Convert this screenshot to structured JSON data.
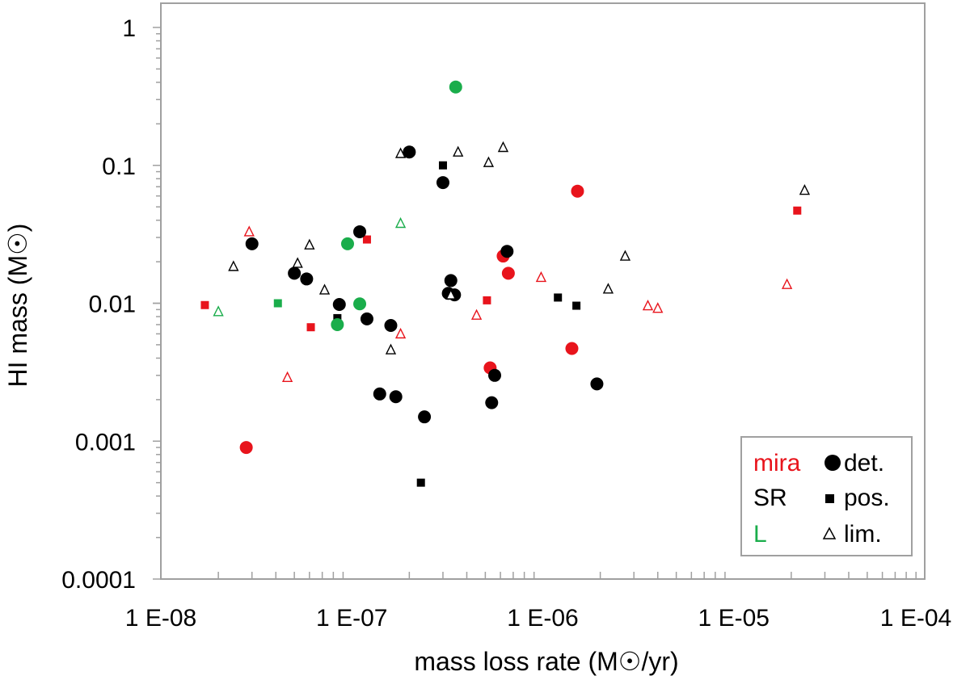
{
  "chart_data": {
    "type": "scatter",
    "title": "",
    "xlabel": "mass loss rate  (M☉/yr)",
    "ylabel": "HI mass (M☉)",
    "xscale": "log",
    "yscale": "log",
    "xlim": [
      1e-08,
      0.0001
    ],
    "ylim": [
      0.0001,
      1
    ],
    "grid": false,
    "x_ticks": [
      {
        "value": 1e-08,
        "label": "1 E-08"
      },
      {
        "value": 1e-07,
        "label": "1 E-07"
      },
      {
        "value": 1e-06,
        "label": "1 E-06"
      },
      {
        "value": 1e-05,
        "label": "1 E-05"
      },
      {
        "value": 0.0001,
        "label": "1 E-04"
      }
    ],
    "y_ticks": [
      {
        "value": 1,
        "label": "1"
      },
      {
        "value": 0.1,
        "label": "0.1"
      },
      {
        "value": 0.01,
        "label": "0.01"
      },
      {
        "value": 0.001,
        "label": "0.001"
      },
      {
        "value": 0.0001,
        "label": "0.0001"
      }
    ],
    "colors": {
      "mira": "#e8141c",
      "SR": "#000000",
      "L": "#1aad4b"
    },
    "legend": {
      "placement": "bottom-right",
      "types": [
        {
          "name": "mira",
          "color": "#e8141c"
        },
        {
          "name": "SR",
          "color": "#000000"
        },
        {
          "name": "L",
          "color": "#1aad4b"
        }
      ],
      "markers": [
        {
          "marker": "circle",
          "label": "det."
        },
        {
          "marker": "square",
          "label": "pos."
        },
        {
          "marker": "triangle",
          "label": "lim."
        }
      ]
    },
    "series": [
      {
        "name": "mira det.",
        "type": "mira",
        "marker": "circle",
        "points": [
          [
            2.8e-08,
            0.0009
          ],
          [
            6.2e-07,
            0.022
          ],
          [
            6.6e-07,
            0.0165
          ],
          [
            5.3e-07,
            0.0034
          ],
          [
            1.42e-06,
            0.0047
          ],
          [
            1.52e-06,
            0.065
          ]
        ]
      },
      {
        "name": "mira pos.",
        "type": "mira",
        "marker": "square",
        "points": [
          [
            1.7e-08,
            0.0097
          ],
          [
            6.1e-08,
            0.0067
          ],
          [
            1.2e-07,
            0.029
          ],
          [
            5.1e-07,
            0.0105
          ],
          [
            2.15e-05,
            0.047
          ]
        ]
      },
      {
        "name": "mira lim.",
        "type": "mira",
        "marker": "triangle",
        "points": [
          [
            2.9e-08,
            0.033
          ],
          [
            4.6e-08,
            0.0029
          ],
          [
            1.8e-07,
            0.006
          ],
          [
            4.5e-07,
            0.0082
          ],
          [
            9.8e-07,
            0.0154
          ],
          [
            3.55e-06,
            0.0096
          ],
          [
            4e-06,
            0.0092
          ],
          [
            1.9e-05,
            0.0137
          ]
        ]
      },
      {
        "name": "SR det.",
        "type": "SR",
        "marker": "circle",
        "points": [
          [
            3e-08,
            0.027
          ],
          [
            5e-08,
            0.0165
          ],
          [
            5.8e-08,
            0.015
          ],
          [
            8.6e-08,
            0.0098
          ],
          [
            1.1e-07,
            0.033
          ],
          [
            1.2e-07,
            0.0077
          ],
          [
            1.4e-07,
            0.0022
          ],
          [
            1.6e-07,
            0.0069
          ],
          [
            1.7e-07,
            0.0021
          ],
          [
            2e-07,
            0.125
          ],
          [
            2.4e-07,
            0.0015
          ],
          [
            3e-07,
            0.075
          ],
          [
            3.2e-07,
            0.0118
          ],
          [
            3.3e-07,
            0.0146
          ],
          [
            3.45e-07,
            0.0115
          ],
          [
            5.4e-07,
            0.0019
          ],
          [
            5.6e-07,
            0.003
          ],
          [
            6.5e-07,
            0.0238
          ],
          [
            1.92e-06,
            0.0026
          ]
        ]
      },
      {
        "name": "SR pos.",
        "type": "SR",
        "marker": "square",
        "points": [
          [
            8.4e-08,
            0.0078
          ],
          [
            2.3e-07,
            0.0005
          ],
          [
            3e-07,
            0.1
          ],
          [
            1.2e-06,
            0.011
          ],
          [
            1.5e-06,
            0.0096
          ]
        ]
      },
      {
        "name": "SR lim.",
        "type": "SR",
        "marker": "triangle",
        "points": [
          [
            2.4e-08,
            0.0185
          ],
          [
            5.2e-08,
            0.0195
          ],
          [
            6e-08,
            0.0265
          ],
          [
            7.2e-08,
            0.0125
          ],
          [
            1.6e-07,
            0.0046
          ],
          [
            1.8e-07,
            0.122
          ],
          [
            3.3e-07,
            0.0115
          ],
          [
            3.6e-07,
            0.125
          ],
          [
            5.2e-07,
            0.105
          ],
          [
            6.2e-07,
            0.135
          ],
          [
            2.2e-06,
            0.0127
          ],
          [
            2.7e-06,
            0.022
          ],
          [
            2.35e-05,
            0.066
          ]
        ]
      },
      {
        "name": "L det.",
        "type": "L",
        "marker": "circle",
        "points": [
          [
            8.4e-08,
            0.007
          ],
          [
            9.5e-08,
            0.027
          ],
          [
            1.1e-07,
            0.0099
          ],
          [
            3.5e-07,
            0.37
          ]
        ]
      },
      {
        "name": "L pos.",
        "type": "L",
        "marker": "square",
        "points": [
          [
            4.1e-08,
            0.01
          ]
        ]
      },
      {
        "name": "L lim.",
        "type": "L",
        "marker": "triangle",
        "points": [
          [
            2e-08,
            0.0087
          ],
          [
            1.8e-07,
            0.038
          ]
        ]
      }
    ]
  }
}
